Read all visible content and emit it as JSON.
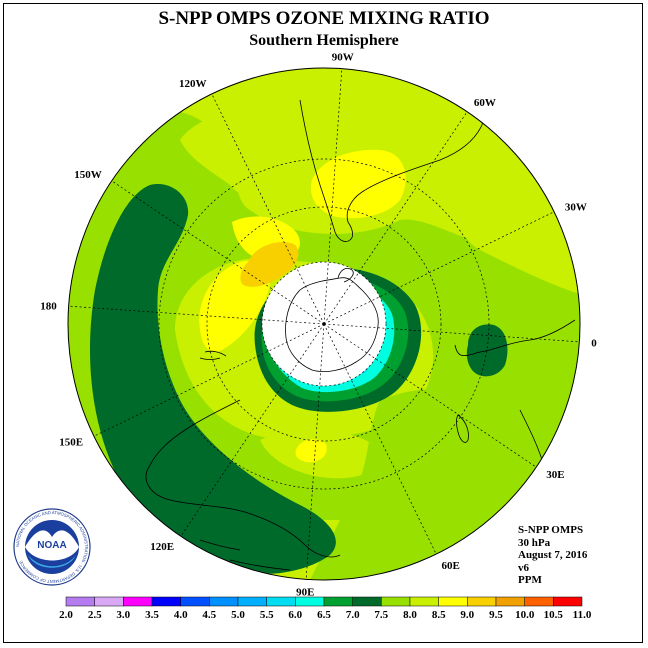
{
  "header": {
    "title": "S-NPP OMPS OZONE MIXING RATIO",
    "subtitle": "Southern Hemisphere"
  },
  "map": {
    "longitude_labels": [
      {
        "text": "90W",
        "lon": -90
      },
      {
        "text": "60W",
        "lon": -60
      },
      {
        "text": "30W",
        "lon": -30
      },
      {
        "text": "0",
        "lon": 0
      },
      {
        "text": "30E",
        "lon": 30
      },
      {
        "text": "60E",
        "lon": 60
      },
      {
        "text": "90E",
        "lon": 90
      },
      {
        "text": "120E",
        "lon": 120
      },
      {
        "text": "150E",
        "lon": 150
      },
      {
        "text": "180",
        "lon": 180
      },
      {
        "text": "150W",
        "lon": -150
      },
      {
        "text": "120W",
        "lon": -120
      }
    ]
  },
  "info": {
    "instrument": "S-NPP OMPS",
    "level": "30 hPa",
    "date": "August 7, 2016",
    "version": "v6",
    "units": "PPM"
  },
  "colorbar": {
    "ticks": [
      "2.0",
      "2.5",
      "3.0",
      "3.5",
      "4.0",
      "4.5",
      "5.0",
      "5.5",
      "6.0",
      "6.5",
      "7.0",
      "7.5",
      "8.0",
      "8.5",
      "9.0",
      "9.5",
      "10.0",
      "10.5",
      "11.0"
    ],
    "colors": [
      "#b57cf0",
      "#d9a8f5",
      "#ff00ff",
      "#0000ff",
      "#0050ff",
      "#0090ff",
      "#00b0ff",
      "#00dcf0",
      "#00ffe0",
      "#00a030",
      "#006a2a",
      "#98e000",
      "#c8f000",
      "#ffff00",
      "#f8d000",
      "#f0a000",
      "#ff6000",
      "#ff0000",
      "#8b5a3c"
    ]
  },
  "logo": {
    "text": "NOAA",
    "ring_text": "NATIONAL OCEANIC AND ATMOSPHERIC ADMINISTRATION · U.S. DEPARTMENT OF COMMERCE"
  }
}
